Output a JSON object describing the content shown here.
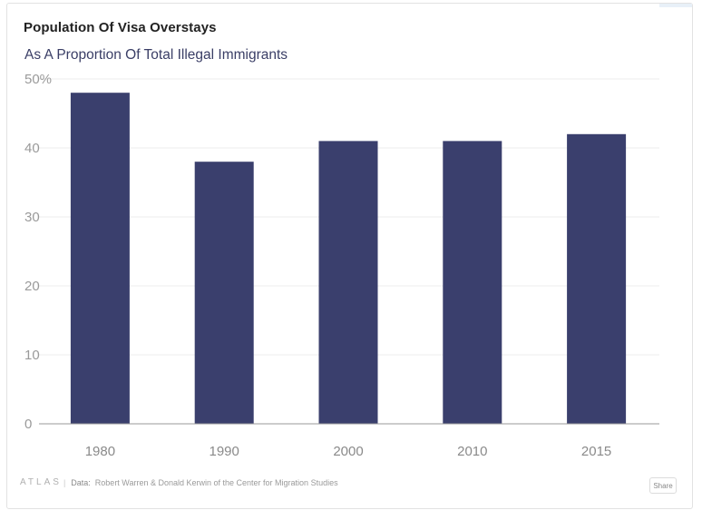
{
  "chart_data": {
    "type": "bar",
    "title": "Population Of Visa Overstays",
    "subtitle": "As A Proportion Of Total Illegal Immigrants",
    "categories": [
      "1980",
      "1990",
      "2000",
      "2010",
      "2015"
    ],
    "values": [
      48,
      38,
      41,
      41,
      42
    ],
    "y_ticks": [
      0,
      10,
      20,
      30,
      40,
      50
    ],
    "y_tick_labels": [
      "0",
      "10",
      "20",
      "30",
      "40",
      "50%"
    ],
    "ylim": [
      0,
      50
    ],
    "xlabel": "",
    "ylabel": "",
    "grid": true,
    "bar_color": "#3a3f6d"
  },
  "footer": {
    "brand": "ATLAS",
    "separator": "|",
    "data_label": "Data:",
    "source": "Robert Warren & Donald Kerwin of the Center for Migration Studies",
    "share_label": "Share"
  }
}
